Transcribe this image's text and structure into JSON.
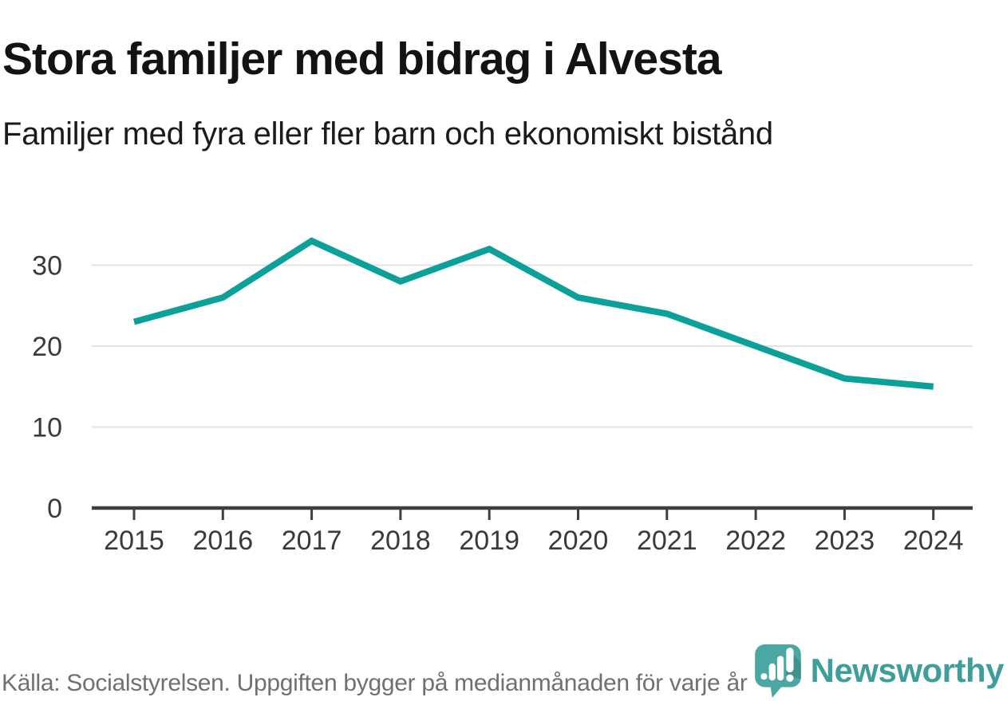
{
  "header": {
    "title": "Stora familjer med bidrag i Alvesta",
    "subtitle": "Familjer med fyra eller fler barn och ekonomiskt bistånd"
  },
  "footer": {
    "source": "Källa: Socialstyrelsen. Uppgiften bygger på medianmånaden för varje år",
    "brand": "Newsworthy"
  },
  "colors": {
    "line": "#0CA09A",
    "grid": "#E3E3E3",
    "axis": "#3F3F3F",
    "tick_label": "#3A3A3A",
    "logo_bubble": "#4AA7A1",
    "logo_bars": "#FFFFFF",
    "logo_text": "#3E9E99",
    "footer_text": "#707074"
  },
  "chart_data": {
    "type": "line",
    "title": "Stora familjer med bidrag i Alvesta",
    "subtitle": "Familjer med fyra eller fler barn och ekonomiskt bistånd",
    "categories": [
      "2015",
      "2016",
      "2017",
      "2018",
      "2019",
      "2020",
      "2021",
      "2022",
      "2023",
      "2024"
    ],
    "series": [
      {
        "name": "Familjer med fyra eller fler barn och ekonomiskt bistånd",
        "values": [
          23,
          26,
          33,
          28,
          32,
          26,
          24,
          20,
          16,
          15
        ]
      }
    ],
    "yticks": [
      0,
      10,
      20,
      30
    ],
    "ylim": [
      0,
      35
    ],
    "xlabel": "",
    "ylabel": "",
    "grid": true,
    "legend_position": "none",
    "line_color": "#0CA09A"
  }
}
